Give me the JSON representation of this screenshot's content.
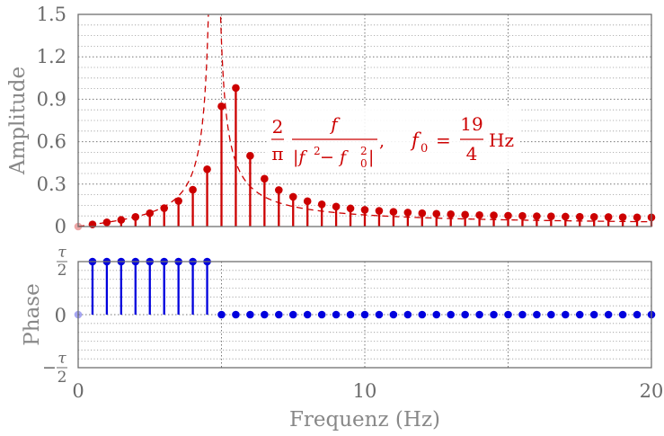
{
  "chart_data": [
    {
      "type": "stem",
      "panel": "amplitude",
      "ylabel": "Amplitude",
      "xlim": [
        0,
        20
      ],
      "ylim": [
        0,
        1.5
      ],
      "yticks": [
        0,
        0.3,
        0.6,
        0.9,
        1.2,
        1.5
      ],
      "ytick_labels": [
        "0",
        "0.3",
        "0.6",
        "0.9",
        "1.2",
        "1.5"
      ],
      "color": "#cc0000",
      "f0": 4.75,
      "x": [
        0,
        0.5,
        1,
        1.5,
        2,
        2.5,
        3,
        3.5,
        4,
        4.5,
        5,
        5.5,
        6,
        6.5,
        7,
        7.5,
        8,
        8.5,
        9,
        9.5,
        10,
        10.5,
        11,
        11.5,
        12,
        12.5,
        13,
        13.5,
        14,
        14.5,
        15,
        15.5,
        16,
        16.5,
        17,
        17.5,
        18,
        18.5,
        19,
        19.5,
        20
      ],
      "values": [
        0,
        0.015,
        0.03,
        0.047,
        0.068,
        0.094,
        0.13,
        0.181,
        0.26,
        0.405,
        0.85,
        0.98,
        0.5,
        0.338,
        0.258,
        0.21,
        0.179,
        0.157,
        0.141,
        0.128,
        0.118,
        0.111,
        0.104,
        0.099,
        0.094,
        0.09,
        0.087,
        0.084,
        0.081,
        0.079,
        0.077,
        0.075,
        0.073,
        0.072,
        0.07,
        0.069,
        0.068,
        0.067,
        0.066,
        0.065,
        0.065
      ],
      "formula": {
        "num1": "2",
        "den1": "π",
        "num2": "f",
        "den2_a": "|f",
        "den2_b": "2",
        "den2_c": " − f",
        "den2_d": "2",
        "den2_e": "0",
        "den2_f": "|",
        "comma": ",",
        "lhs": "f",
        "lhs_sub": "0",
        "eq": "=",
        "num3": "19",
        "den3": "4",
        "unit": "Hz"
      }
    },
    {
      "type": "stem",
      "panel": "phase",
      "ylabel": "Phase",
      "xlabel": "Frequenz (Hz)",
      "xlim": [
        0,
        20
      ],
      "ylim": [
        -0.5,
        0.5
      ],
      "xticks": [
        0,
        10,
        20
      ],
      "xtick_labels": [
        "0",
        "10",
        "20"
      ],
      "ytick_labels": {
        "top_num": "τ",
        "top_den": "2",
        "zero": "0",
        "bot_sign": "−",
        "bot_num": "τ",
        "bot_den": "2"
      },
      "color": "#0000dd",
      "x": [
        0,
        0.5,
        1,
        1.5,
        2,
        2.5,
        3,
        3.5,
        4,
        4.5,
        5,
        5.5,
        6,
        6.5,
        7,
        7.5,
        8,
        8.5,
        9,
        9.5,
        10,
        10.5,
        11,
        11.5,
        12,
        12.5,
        13,
        13.5,
        14,
        14.5,
        15,
        15.5,
        16,
        16.5,
        17,
        17.5,
        18,
        18.5,
        19,
        19.5,
        20
      ],
      "values": [
        0,
        0.5,
        0.5,
        0.5,
        0.5,
        0.5,
        0.5,
        0.5,
        0.5,
        0.5,
        0,
        0,
        0,
        0,
        0,
        0,
        0,
        0,
        0,
        0,
        0,
        0,
        0,
        0,
        0,
        0,
        0,
        0,
        0,
        0,
        0,
        0,
        0,
        0,
        0,
        0,
        0,
        0,
        0,
        0,
        0
      ]
    }
  ]
}
